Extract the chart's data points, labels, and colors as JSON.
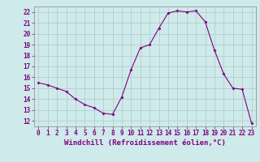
{
  "x": [
    0,
    1,
    2,
    3,
    4,
    5,
    6,
    7,
    8,
    9,
    10,
    11,
    12,
    13,
    14,
    15,
    16,
    17,
    18,
    19,
    20,
    21,
    22,
    23
  ],
  "y": [
    15.5,
    15.3,
    15.0,
    14.7,
    14.0,
    13.5,
    13.2,
    12.7,
    12.6,
    14.2,
    16.7,
    18.7,
    19.0,
    20.5,
    21.9,
    22.1,
    22.0,
    22.1,
    21.1,
    18.5,
    16.3,
    15.0,
    14.9,
    11.8
  ],
  "xlabel": "Windchill (Refroidissement éolien,°C)",
  "ylim": [
    11.5,
    22.5
  ],
  "xlim": [
    -0.5,
    23.5
  ],
  "yticks": [
    12,
    13,
    14,
    15,
    16,
    17,
    18,
    19,
    20,
    21,
    22
  ],
  "xticks": [
    0,
    1,
    2,
    3,
    4,
    5,
    6,
    7,
    8,
    9,
    10,
    11,
    12,
    13,
    14,
    15,
    16,
    17,
    18,
    19,
    20,
    21,
    22,
    23
  ],
  "line_color": "#800080",
  "marker": "D",
  "marker_size": 2.0,
  "bg_color": "#ceeaea",
  "grid_color": "#b0c8c8",
  "xlabel_fontsize": 6.5,
  "tick_fontsize": 5.5,
  "bottom_bar_color": "#800080"
}
